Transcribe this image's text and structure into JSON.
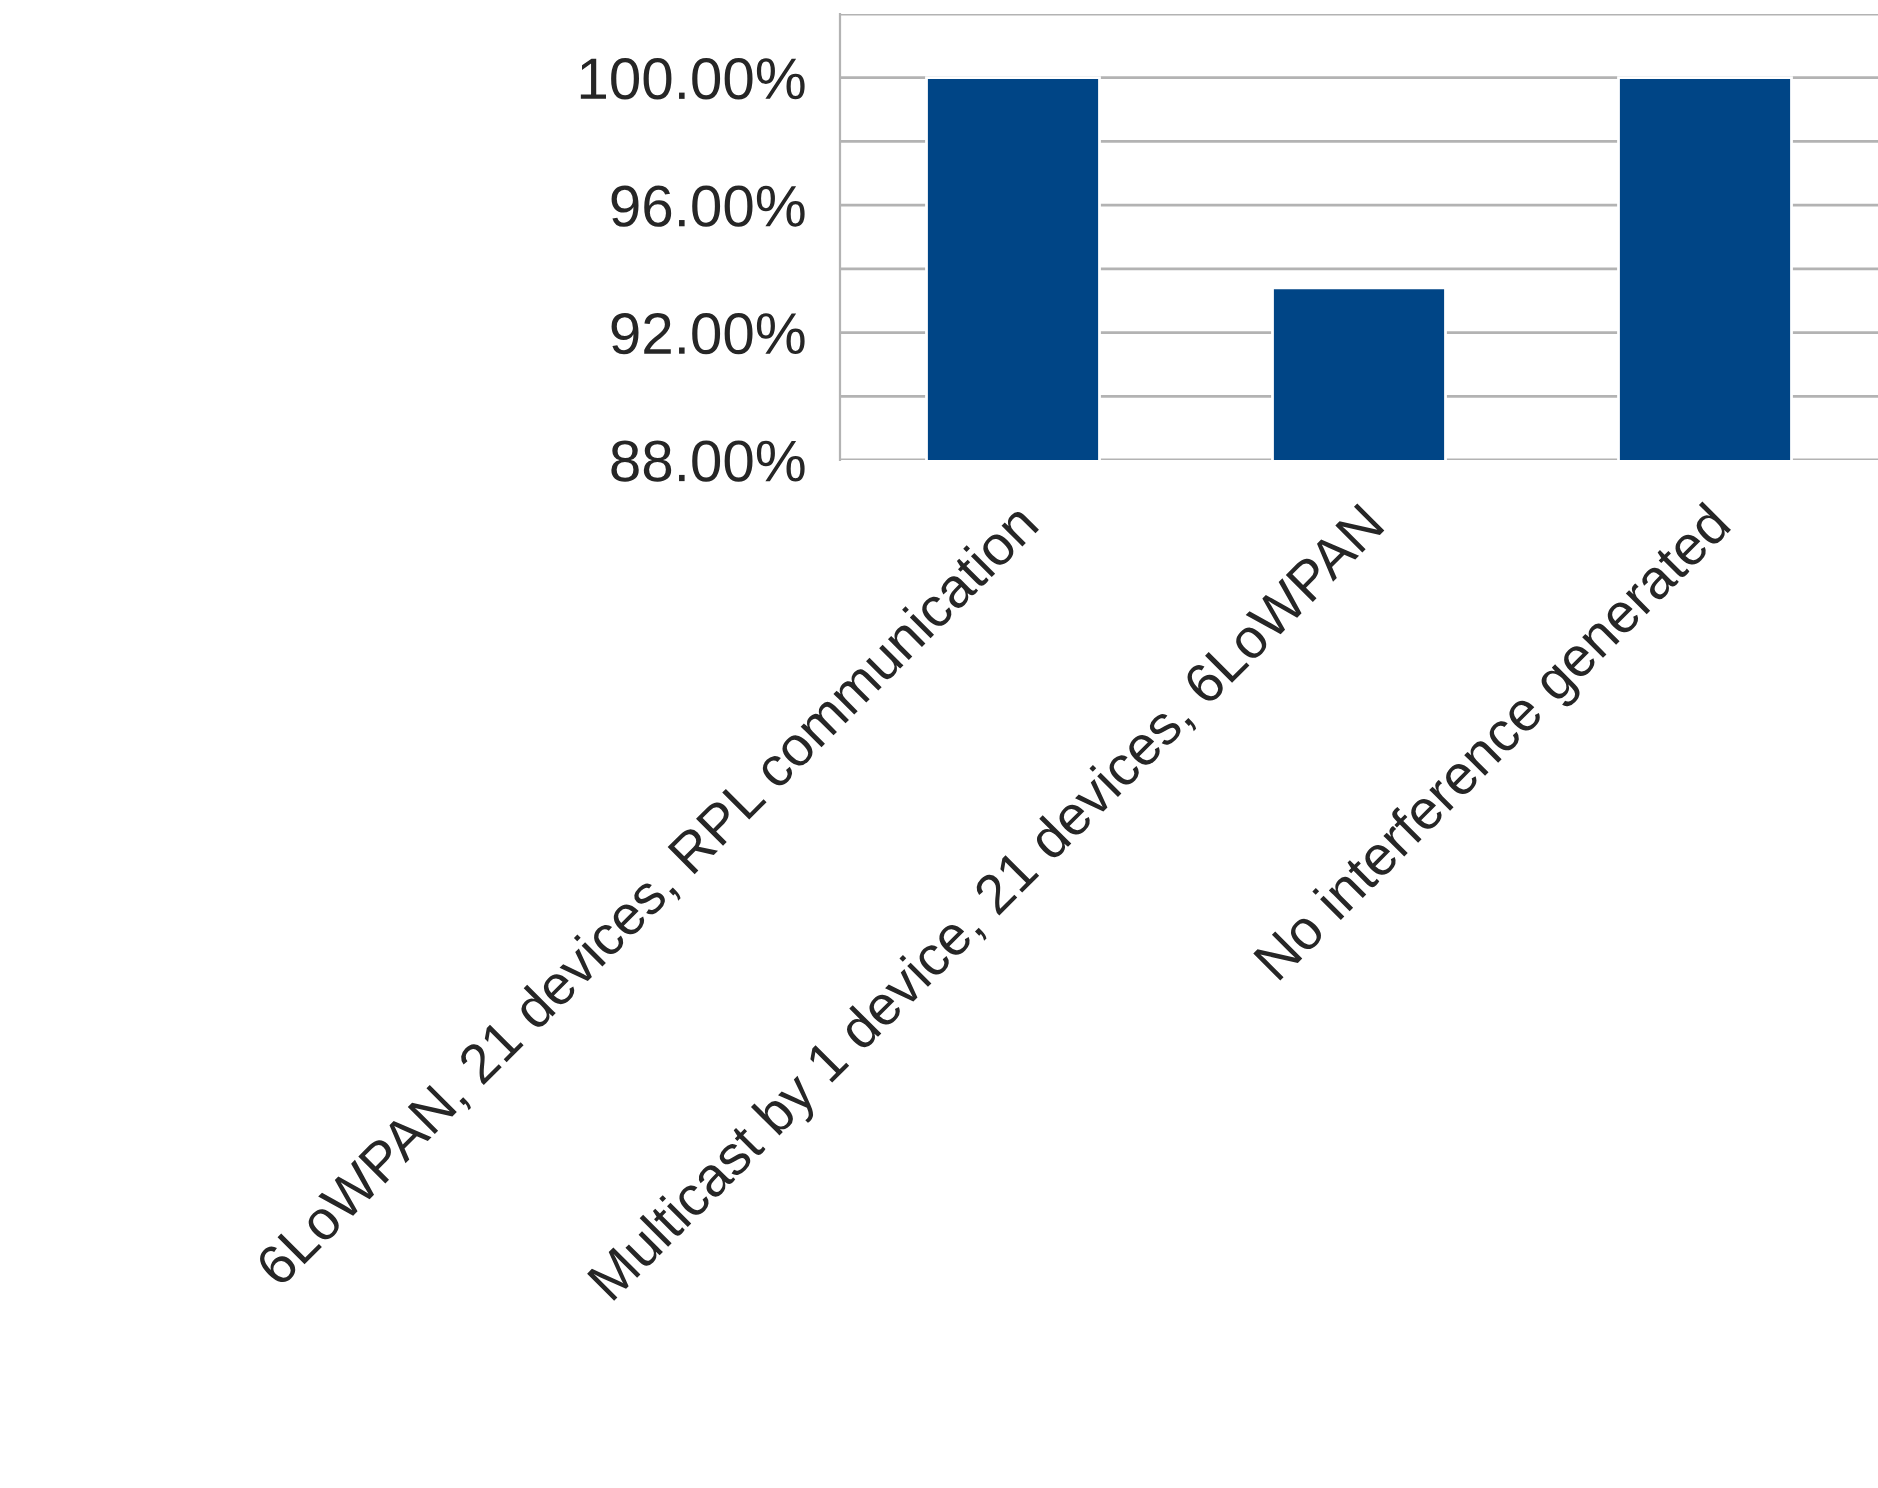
{
  "chart_data": {
    "type": "bar",
    "categories": [
      "6LoWPAN, 21 devices, RPL communication",
      "Multicast by 1 device, 21 devices, 6LoWPAN",
      "No interference generated"
    ],
    "values": [
      100,
      93.4,
      100
    ],
    "color": "#004586",
    "ylim": [
      88,
      102
    ],
    "yticks": [
      {
        "value": 88,
        "label": "88.00%"
      },
      {
        "value": 90,
        "label": null
      },
      {
        "value": 92,
        "label": "92.00%"
      },
      {
        "value": 94,
        "label": null
      },
      {
        "value": 96,
        "label": "96.00%"
      },
      {
        "value": 98,
        "label": null
      },
      {
        "value": 100,
        "label": "100.00%"
      },
      {
        "value": 102,
        "label": null
      }
    ],
    "grid": "y",
    "legend": false
  }
}
